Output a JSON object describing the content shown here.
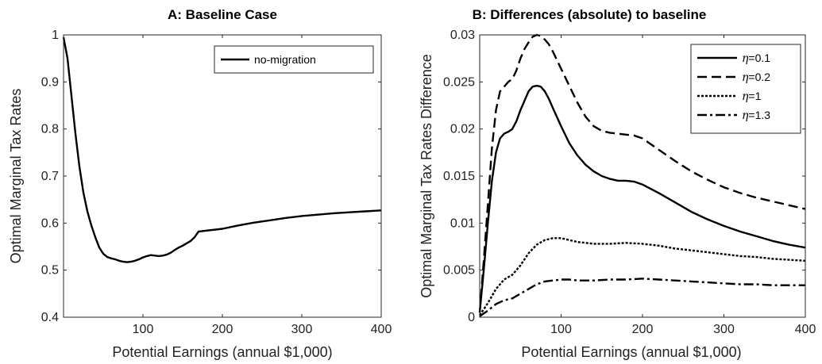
{
  "chart_data": [
    {
      "type": "line",
      "title": "A: Baseline Case",
      "xlabel": "Potential Earnings (annual $1,000)",
      "ylabel": "Optimal Marginal Tax Rates",
      "xlim": [
        0,
        400
      ],
      "ylim": [
        0.4,
        1.0
      ],
      "xticks": [
        "100",
        "200",
        "300",
        "400"
      ],
      "yticks": [
        "0.4",
        "0.5",
        "0.6",
        "0.7",
        "0.8",
        "0.9",
        "1"
      ],
      "grid": false,
      "legend": "top-right",
      "series": [
        {
          "name": "no-migration",
          "style": "solid",
          "x": [
            0,
            5,
            10,
            15,
            20,
            25,
            30,
            35,
            40,
            45,
            50,
            55,
            60,
            65,
            70,
            75,
            80,
            85,
            90,
            95,
            100,
            105,
            110,
            115,
            120,
            125,
            130,
            135,
            140,
            145,
            150,
            155,
            160,
            165,
            170,
            180,
            200,
            220,
            240,
            260,
            280,
            300,
            320,
            340,
            360,
            380,
            400
          ],
          "y": [
            0.995,
            0.95,
            0.87,
            0.79,
            0.72,
            0.665,
            0.625,
            0.595,
            0.57,
            0.548,
            0.535,
            0.528,
            0.525,
            0.523,
            0.52,
            0.518,
            0.517,
            0.518,
            0.52,
            0.523,
            0.527,
            0.53,
            0.532,
            0.531,
            0.53,
            0.531,
            0.533,
            0.537,
            0.543,
            0.548,
            0.552,
            0.557,
            0.562,
            0.57,
            0.582,
            0.584,
            0.588,
            0.595,
            0.601,
            0.606,
            0.611,
            0.615,
            0.618,
            0.621,
            0.623,
            0.625,
            0.627
          ]
        }
      ]
    },
    {
      "type": "line",
      "title": "B: Differences (absolute) to baseline",
      "xlabel": "Potential Earnings (annual $1,000)",
      "ylabel": "Optimal Marginal Tax Rates Difference",
      "xlim": [
        0,
        400
      ],
      "ylim": [
        0,
        0.03
      ],
      "xticks": [
        "100",
        "200",
        "300",
        "400"
      ],
      "yticks": [
        "0",
        "0.005",
        "0.01",
        "0.015",
        "0.02",
        "0.025",
        "0.03"
      ],
      "grid": false,
      "legend": "top-right",
      "series": [
        {
          "name": "η=0.1",
          "style": "solid",
          "x": [
            0,
            5,
            10,
            15,
            20,
            25,
            30,
            35,
            40,
            45,
            50,
            55,
            60,
            65,
            70,
            75,
            80,
            85,
            90,
            100,
            110,
            120,
            130,
            140,
            150,
            160,
            170,
            180,
            190,
            200,
            220,
            240,
            260,
            280,
            300,
            320,
            340,
            360,
            380,
            400
          ],
          "y": [
            0.0005,
            0.005,
            0.01,
            0.0145,
            0.0175,
            0.019,
            0.0195,
            0.0197,
            0.02,
            0.0208,
            0.022,
            0.023,
            0.024,
            0.0245,
            0.0246,
            0.0245,
            0.024,
            0.0232,
            0.0222,
            0.0203,
            0.0185,
            0.0172,
            0.0162,
            0.0155,
            0.015,
            0.0147,
            0.0145,
            0.0145,
            0.0144,
            0.0141,
            0.0132,
            0.0122,
            0.0112,
            0.0104,
            0.0097,
            0.0091,
            0.0086,
            0.0081,
            0.0077,
            0.0074
          ]
        },
        {
          "name": "η=0.2",
          "style": "dash",
          "x": [
            0,
            5,
            10,
            15,
            20,
            25,
            30,
            35,
            40,
            45,
            50,
            55,
            60,
            65,
            70,
            75,
            80,
            85,
            90,
            100,
            110,
            120,
            130,
            140,
            150,
            160,
            170,
            180,
            190,
            200,
            220,
            240,
            260,
            280,
            300,
            320,
            340,
            360,
            380,
            400
          ],
          "y": [
            0.0005,
            0.006,
            0.012,
            0.018,
            0.022,
            0.024,
            0.0245,
            0.025,
            0.0253,
            0.0262,
            0.0275,
            0.0285,
            0.0292,
            0.0298,
            0.03,
            0.0299,
            0.0295,
            0.029,
            0.0282,
            0.0264,
            0.0246,
            0.0228,
            0.0213,
            0.0203,
            0.0198,
            0.0196,
            0.0195,
            0.0194,
            0.0193,
            0.019,
            0.0178,
            0.0166,
            0.0155,
            0.0146,
            0.0138,
            0.0132,
            0.0127,
            0.0123,
            0.0119,
            0.0115
          ]
        },
        {
          "name": "η=1",
          "style": "dot",
          "x": [
            0,
            10,
            20,
            30,
            40,
            50,
            60,
            70,
            80,
            90,
            100,
            110,
            120,
            140,
            160,
            180,
            200,
            220,
            240,
            260,
            280,
            300,
            320,
            340,
            360,
            380,
            400
          ],
          "y": [
            0.0002,
            0.0015,
            0.003,
            0.004,
            0.0045,
            0.0055,
            0.0068,
            0.0077,
            0.0082,
            0.0084,
            0.0084,
            0.0082,
            0.008,
            0.0078,
            0.0078,
            0.0079,
            0.0078,
            0.0076,
            0.0073,
            0.0071,
            0.0069,
            0.0067,
            0.0065,
            0.0064,
            0.0062,
            0.0061,
            0.006
          ]
        },
        {
          "name": "η=1.3",
          "style": "dashdot",
          "x": [
            0,
            10,
            20,
            30,
            40,
            50,
            60,
            70,
            80,
            90,
            100,
            110,
            120,
            140,
            160,
            180,
            200,
            220,
            240,
            260,
            280,
            300,
            320,
            340,
            360,
            380,
            400
          ],
          "y": [
            0.0001,
            0.0007,
            0.0014,
            0.0018,
            0.002,
            0.0025,
            0.003,
            0.0035,
            0.0038,
            0.0039,
            0.004,
            0.004,
            0.0039,
            0.0039,
            0.004,
            0.004,
            0.0041,
            0.004,
            0.0039,
            0.0038,
            0.0037,
            0.0036,
            0.0035,
            0.0035,
            0.0034,
            0.0034,
            0.0034
          ]
        }
      ]
    }
  ]
}
